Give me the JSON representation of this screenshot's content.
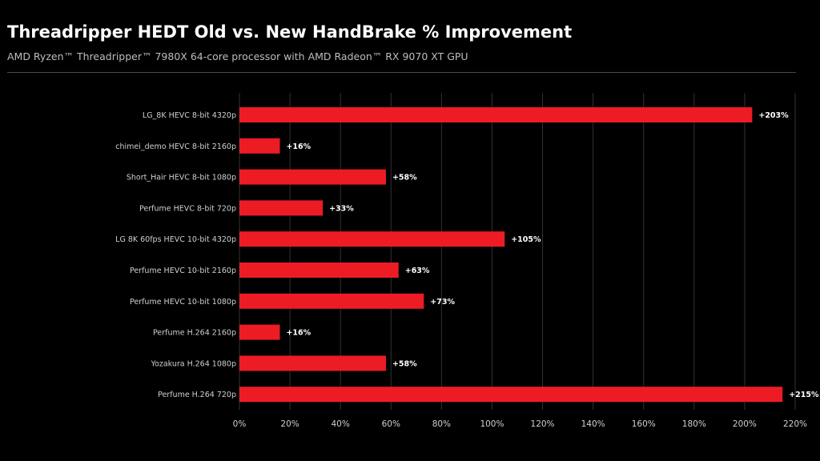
{
  "header": {
    "title": "Threadripper HEDT Old vs. New HandBrake % Improvement",
    "subtitle": "AMD Ryzen™ Threadripper™ 7980X 64-core processor with AMD Radeon™ RX 9070 XT GPU"
  },
  "chart_data": {
    "type": "bar",
    "orientation": "horizontal",
    "title": "Threadripper HEDT Old vs. New HandBrake % Improvement",
    "subtitle": "AMD Ryzen™ Threadripper™ 7980X 64-core processor with AMD Radeon™ RX 9070 XT GPU",
    "xlabel": "",
    "ylabel": "",
    "categories": [
      "LG_8K HEVC 8-bit 4320p",
      "chimei_demo HEVC 8-bit 2160p",
      "Short_Hair HEVC 8-bit 1080p",
      "Perfume HEVC 8-bit 720p",
      "LG 8K 60fps HEVC 10-bit 4320p",
      "Perfume HEVC 10-bit 2160p",
      "Perfume HEVC 10-bit 1080p",
      "Perfume H.264 2160p",
      "Yozakura H.264 1080p",
      "Perfume H.264 720p"
    ],
    "values": [
      203,
      16,
      58,
      33,
      105,
      63,
      73,
      16,
      58,
      215
    ],
    "data_labels": [
      "+203%",
      "+16%",
      "+58%",
      "+33%",
      "+105%",
      "+63%",
      "+73%",
      "+16%",
      "+58%",
      "+215%"
    ],
    "xlim": [
      0,
      220
    ],
    "xticks": [
      0,
      20,
      40,
      60,
      80,
      100,
      120,
      140,
      160,
      180,
      200,
      220
    ],
    "xtick_labels": [
      "0%",
      "20%",
      "40%",
      "60%",
      "80%",
      "100%",
      "120%",
      "140%",
      "160%",
      "180%",
      "200%",
      "220%"
    ],
    "grid": true,
    "legend": "none",
    "colors": {
      "bar": "#ed1c24",
      "background": "#000000",
      "grid": "#333333",
      "text": "#d0d0d0",
      "data_label": "#ffffff"
    }
  }
}
